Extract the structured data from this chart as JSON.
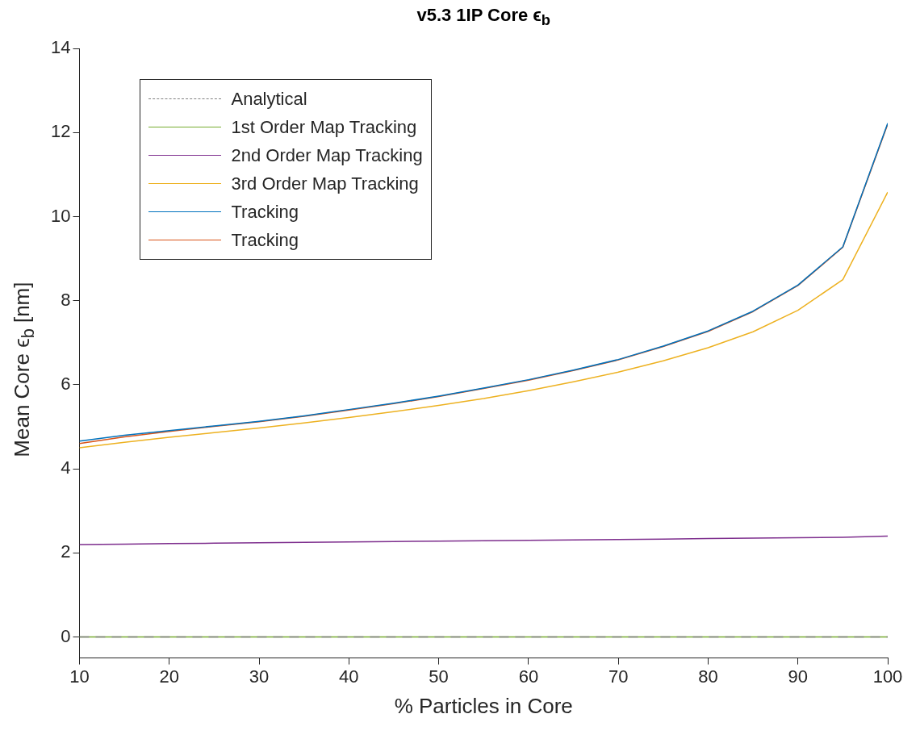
{
  "chart_data": {
    "type": "line",
    "title": "v5.3 1IP Core ϵ$_{b}$",
    "xlabel": "% Particles in Core",
    "ylabel": "Mean Core ϵ$_{b}$ [nm]",
    "x": [
      10,
      15,
      20,
      25,
      30,
      35,
      40,
      45,
      50,
      55,
      60,
      65,
      70,
      75,
      80,
      85,
      90,
      95,
      100
    ],
    "xlim": [
      10,
      100
    ],
    "xticks": [
      10,
      20,
      30,
      40,
      50,
      60,
      70,
      80,
      90,
      100
    ],
    "ylim": [
      -0.5,
      14
    ],
    "yticks": [
      0,
      2,
      4,
      6,
      8,
      10,
      12,
      14
    ],
    "grid": false,
    "legend": "top left",
    "marker": "none",
    "series": [
      {
        "name": "Analytical",
        "color": "#808080",
        "line_style": "dashed",
        "values": [
          0,
          0,
          0,
          0,
          0,
          0,
          0,
          0,
          0,
          0,
          0,
          0,
          0,
          0,
          0,
          0,
          0,
          0,
          0
        ]
      },
      {
        "name": "1st Order Map Tracking",
        "color": "#77ac30",
        "values": [
          0,
          0,
          0,
          0,
          0,
          0,
          0,
          0,
          0,
          0,
          0,
          0,
          0,
          0,
          0,
          0,
          0,
          0,
          0
        ]
      },
      {
        "name": "2nd Order Map Tracking",
        "color": "#7e2f8e",
        "values": [
          2.2,
          2.21,
          2.22,
          2.23,
          2.24,
          2.25,
          2.26,
          2.27,
          2.28,
          2.29,
          2.3,
          2.31,
          2.32,
          2.33,
          2.34,
          2.35,
          2.36,
          2.37,
          2.4
        ]
      },
      {
        "name": "3rd Order Map Tracking",
        "color": "#edb120",
        "values": [
          4.5,
          4.63,
          4.75,
          4.86,
          4.97,
          5.09,
          5.22,
          5.36,
          5.51,
          5.67,
          5.86,
          6.07,
          6.3,
          6.57,
          6.88,
          7.26,
          7.77,
          8.5,
          10.58
        ]
      },
      {
        "name": "Tracking",
        "color": "#0072bd",
        "values": [
          4.66,
          4.8,
          4.91,
          5.02,
          5.13,
          5.26,
          5.41,
          5.56,
          5.73,
          5.92,
          6.12,
          6.35,
          6.6,
          6.92,
          7.28,
          7.75,
          8.37,
          9.28,
          12.22
        ]
      },
      {
        "name": "Tracking",
        "color": "#d95319",
        "values": [
          4.6,
          4.76,
          4.89,
          5.01,
          5.12,
          5.25,
          5.4,
          5.55,
          5.72,
          5.91,
          6.11,
          6.34,
          6.59,
          6.91,
          7.27,
          7.74,
          8.36,
          9.27,
          12.2
        ]
      }
    ]
  }
}
